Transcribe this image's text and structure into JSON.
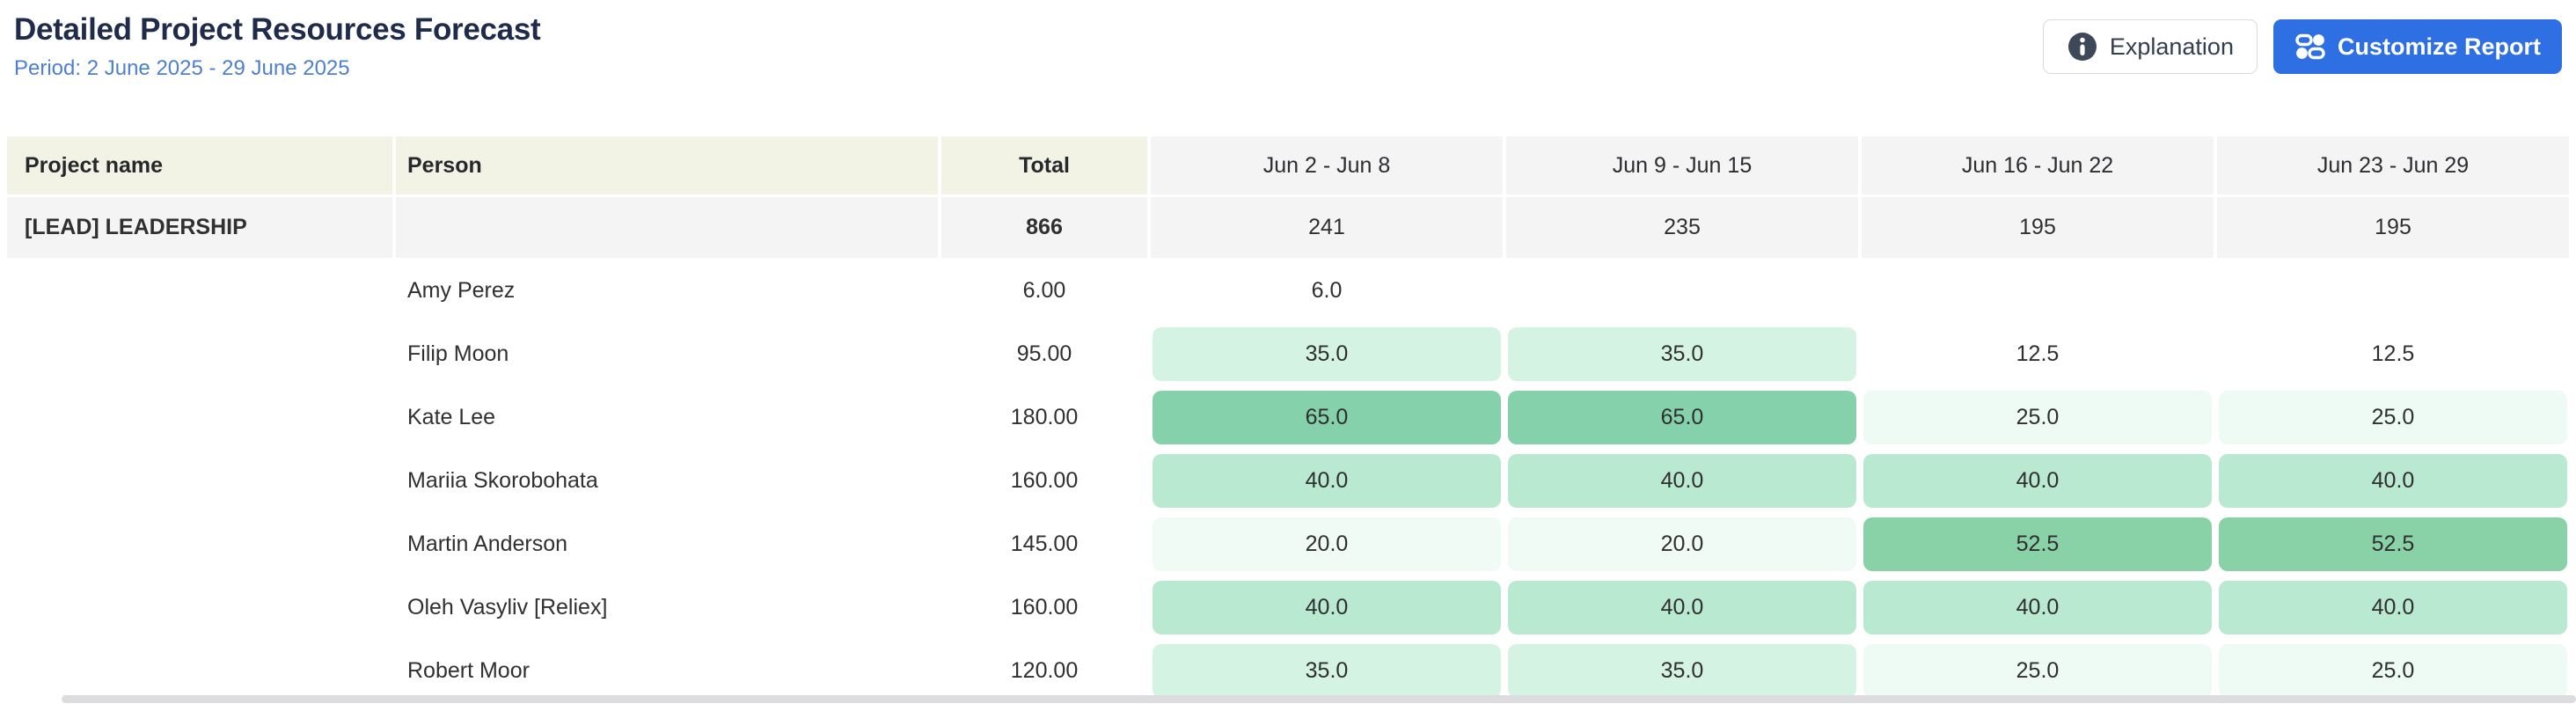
{
  "page": {
    "title": "Detailed Project Resources Forecast",
    "period": "Period: 2 June 2025 - 29 June 2025"
  },
  "toolbar": {
    "explanation_label": "Explanation",
    "customize_label": "Customize Report"
  },
  "colors": {
    "accent_blue": "#2f6fe4",
    "period_blue": "#4e80d0",
    "header_cream": "#f2f3e4",
    "header_gray": "#f4f4f5",
    "title_navy": "#1f2b4a",
    "green_65": "#85d1ab",
    "green_52": "#89d2a8",
    "green_40": "#b9e9d0",
    "green_35": "#d5f3e3",
    "green_25": "#eefbf4",
    "green_20": "#f0fbf5",
    "scrollbar": "#dcdcde"
  },
  "table": {
    "columns": [
      {
        "label": "Project name",
        "group": "cream",
        "align": "left"
      },
      {
        "label": "Person",
        "group": "cream",
        "align": "left"
      },
      {
        "label": "Total",
        "group": "cream",
        "align": "center"
      },
      {
        "label": "Jun 2 - Jun 8",
        "group": "gray",
        "align": "center"
      },
      {
        "label": "Jun 9 - Jun 15",
        "group": "gray",
        "align": "center"
      },
      {
        "label": "Jun 16 - Jun 22",
        "group": "gray",
        "align": "center"
      },
      {
        "label": "Jun 23 - Jun 29",
        "group": "gray",
        "align": "center"
      }
    ],
    "group_row": {
      "project": "[LEAD] LEADERSHIP",
      "person": "",
      "total": "866",
      "weeks": [
        "241",
        "235",
        "195",
        "195"
      ]
    },
    "rows": [
      {
        "person": "Amy Perez",
        "total": "6.00",
        "weeks": [
          {
            "v": "6.0",
            "bg": ""
          },
          {
            "v": "",
            "bg": ""
          },
          {
            "v": "",
            "bg": ""
          },
          {
            "v": "",
            "bg": ""
          }
        ]
      },
      {
        "person": "Filip Moon",
        "total": "95.00",
        "weeks": [
          {
            "v": "35.0",
            "bg": "#d5f3e3"
          },
          {
            "v": "35.0",
            "bg": "#d5f3e3"
          },
          {
            "v": "12.5",
            "bg": ""
          },
          {
            "v": "12.5",
            "bg": ""
          }
        ]
      },
      {
        "person": "Kate Lee",
        "total": "180.00",
        "weeks": [
          {
            "v": "65.0",
            "bg": "#85d1ab"
          },
          {
            "v": "65.0",
            "bg": "#85d1ab"
          },
          {
            "v": "25.0",
            "bg": "#eefbf4"
          },
          {
            "v": "25.0",
            "bg": "#eefbf4"
          }
        ]
      },
      {
        "person": "Mariia Skorobohata",
        "total": "160.00",
        "weeks": [
          {
            "v": "40.0",
            "bg": "#b9e9d0"
          },
          {
            "v": "40.0",
            "bg": "#b9e9d0"
          },
          {
            "v": "40.0",
            "bg": "#b9e9d0"
          },
          {
            "v": "40.0",
            "bg": "#b9e9d0"
          }
        ]
      },
      {
        "person": "Martin Anderson",
        "total": "145.00",
        "weeks": [
          {
            "v": "20.0",
            "bg": "#f0fbf5"
          },
          {
            "v": "20.0",
            "bg": "#f0fbf5"
          },
          {
            "v": "52.5",
            "bg": "#89d2a8"
          },
          {
            "v": "52.5",
            "bg": "#89d2a8"
          }
        ]
      },
      {
        "person": "Oleh Vasyliv [Reliex]",
        "total": "160.00",
        "weeks": [
          {
            "v": "40.0",
            "bg": "#b9e9d0"
          },
          {
            "v": "40.0",
            "bg": "#b9e9d0"
          },
          {
            "v": "40.0",
            "bg": "#b9e9d0"
          },
          {
            "v": "40.0",
            "bg": "#b9e9d0"
          }
        ]
      },
      {
        "person": "Robert Moor",
        "total": "120.00",
        "weeks": [
          {
            "v": "35.0",
            "bg": "#d5f3e3"
          },
          {
            "v": "35.0",
            "bg": "#d5f3e3"
          },
          {
            "v": "25.0",
            "bg": "#eefbf4"
          },
          {
            "v": "25.0",
            "bg": "#eefbf4"
          }
        ]
      }
    ]
  }
}
